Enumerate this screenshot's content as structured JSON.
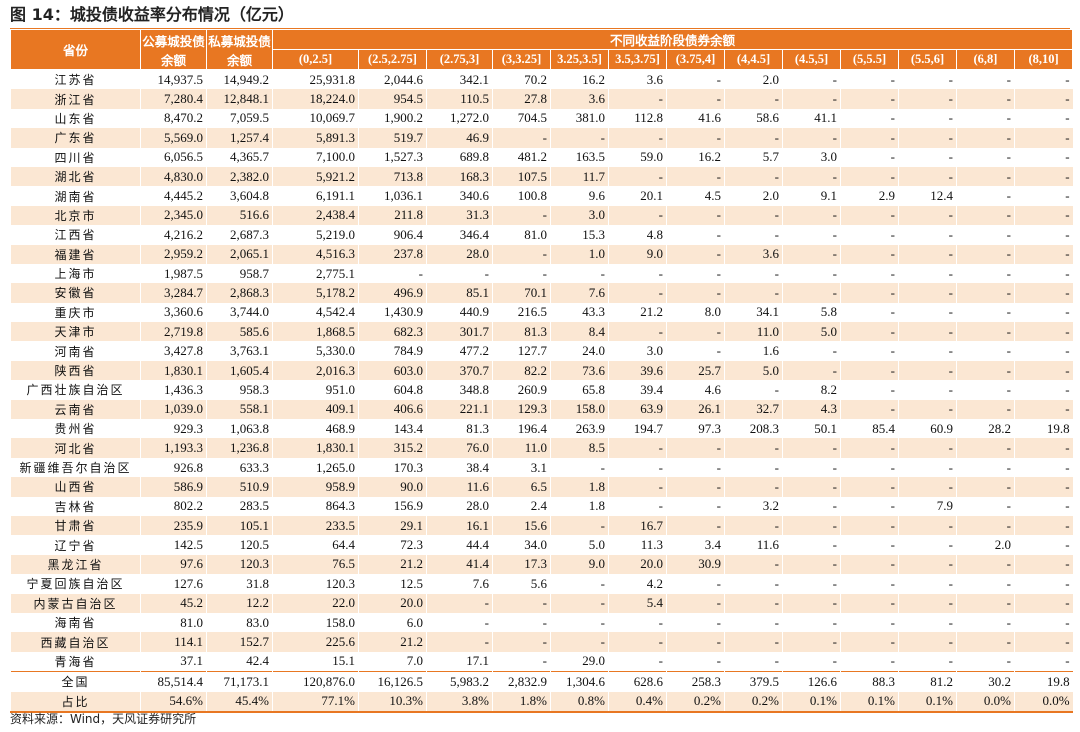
{
  "title": "图 14：城投债收益率分布情况（亿元）",
  "source": "资料来源：Wind，天风证券研究所",
  "colors": {
    "header_bg": "#e87722",
    "stripe": "#fbe7d3"
  },
  "headers": {
    "province": "省份",
    "public": "公募城投债余额",
    "private": "私募城投债余额",
    "group": "不同收益阶段债券余额",
    "ranges": [
      "(0,2.5]",
      "(2.5,2.75]",
      "(2.75,3]",
      "(3,3.25]",
      "3.25,3.5]",
      "3.5,3.75]",
      "(3.75,4]",
      "(4,4.5]",
      "(4.5,5]",
      "(5,5.5]",
      "(5.5,6]",
      "(6,8]",
      "(8,10]"
    ]
  },
  "rows": [
    [
      "江苏省",
      "14,937.5",
      "14,949.2",
      "25,931.8",
      "2,044.6",
      "342.1",
      "70.2",
      "16.2",
      "3.6",
      "-",
      "2.0",
      "-",
      "-",
      "-",
      "-",
      "-"
    ],
    [
      "浙江省",
      "7,280.4",
      "12,848.1",
      "18,224.0",
      "954.5",
      "110.5",
      "27.8",
      "3.6",
      "-",
      "-",
      "-",
      "-",
      "-",
      "-",
      "-",
      "-"
    ],
    [
      "山东省",
      "8,470.2",
      "7,059.5",
      "10,069.7",
      "1,900.2",
      "1,272.0",
      "704.5",
      "381.0",
      "112.8",
      "41.6",
      "58.6",
      "41.1",
      "-",
      "-",
      "-",
      "-"
    ],
    [
      "广东省",
      "5,569.0",
      "1,257.4",
      "5,891.3",
      "519.7",
      "46.9",
      "-",
      "-",
      "-",
      "-",
      "-",
      "-",
      "-",
      "-",
      "-",
      "-"
    ],
    [
      "四川省",
      "6,056.5",
      "4,365.7",
      "7,100.0",
      "1,527.3",
      "689.8",
      "481.2",
      "163.5",
      "59.0",
      "16.2",
      "5.7",
      "3.0",
      "-",
      "-",
      "-",
      "-"
    ],
    [
      "湖北省",
      "4,830.0",
      "2,382.0",
      "5,921.2",
      "713.8",
      "168.3",
      "107.5",
      "11.7",
      "-",
      "-",
      "-",
      "-",
      "-",
      "-",
      "-",
      "-"
    ],
    [
      "湖南省",
      "4,445.2",
      "3,604.8",
      "6,191.1",
      "1,036.1",
      "340.6",
      "100.8",
      "9.6",
      "20.1",
      "4.5",
      "2.0",
      "9.1",
      "2.9",
      "12.4",
      "-",
      "-"
    ],
    [
      "北京市",
      "2,345.0",
      "516.6",
      "2,438.4",
      "211.8",
      "31.3",
      "-",
      "3.0",
      "-",
      "-",
      "-",
      "-",
      "-",
      "-",
      "-",
      "-"
    ],
    [
      "江西省",
      "4,216.2",
      "2,687.3",
      "5,219.0",
      "906.4",
      "346.4",
      "81.0",
      "15.3",
      "4.8",
      "-",
      "-",
      "-",
      "-",
      "-",
      "-",
      "-"
    ],
    [
      "福建省",
      "2,959.2",
      "2,065.1",
      "4,516.3",
      "237.8",
      "28.0",
      "-",
      "1.0",
      "9.0",
      "-",
      "3.6",
      "-",
      "-",
      "-",
      "-",
      "-"
    ],
    [
      "上海市",
      "1,987.5",
      "958.7",
      "2,775.1",
      "-",
      "-",
      "-",
      "-",
      "-",
      "-",
      "-",
      "-",
      "-",
      "-",
      "-",
      "-"
    ],
    [
      "安徽省",
      "3,284.7",
      "2,868.3",
      "5,178.2",
      "496.9",
      "85.1",
      "70.1",
      "7.6",
      "-",
      "-",
      "-",
      "-",
      "-",
      "-",
      "-",
      "-"
    ],
    [
      "重庆市",
      "3,360.6",
      "3,744.0",
      "4,542.4",
      "1,430.9",
      "440.9",
      "216.5",
      "43.3",
      "21.2",
      "8.0",
      "34.1",
      "5.8",
      "-",
      "-",
      "-",
      "-"
    ],
    [
      "天津市",
      "2,719.8",
      "585.6",
      "1,868.5",
      "682.3",
      "301.7",
      "81.3",
      "8.4",
      "-",
      "-",
      "11.0",
      "5.0",
      "-",
      "-",
      "-",
      "-"
    ],
    [
      "河南省",
      "3,427.8",
      "3,763.1",
      "5,330.0",
      "784.9",
      "477.2",
      "127.7",
      "24.0",
      "3.0",
      "-",
      "1.6",
      "-",
      "-",
      "-",
      "-",
      "-"
    ],
    [
      "陕西省",
      "1,830.1",
      "1,605.4",
      "2,016.3",
      "603.0",
      "370.7",
      "82.2",
      "73.6",
      "39.6",
      "25.7",
      "5.0",
      "-",
      "-",
      "-",
      "-",
      "-"
    ],
    [
      "广西壮族自治区",
      "1,436.3",
      "958.3",
      "951.0",
      "604.8",
      "348.8",
      "260.9",
      "65.8",
      "39.4",
      "4.6",
      "-",
      "8.2",
      "-",
      "-",
      "-",
      "-"
    ],
    [
      "云南省",
      "1,039.0",
      "558.1",
      "409.1",
      "406.6",
      "221.1",
      "129.3",
      "158.0",
      "63.9",
      "26.1",
      "32.7",
      "4.3",
      "-",
      "-",
      "-",
      "-"
    ],
    [
      "贵州省",
      "929.3",
      "1,063.8",
      "468.9",
      "143.4",
      "81.3",
      "196.4",
      "263.9",
      "194.7",
      "97.3",
      "208.3",
      "50.1",
      "85.4",
      "60.9",
      "28.2",
      "19.8"
    ],
    [
      "河北省",
      "1,193.3",
      "1,236.8",
      "1,830.1",
      "315.2",
      "76.0",
      "11.0",
      "8.5",
      "-",
      "-",
      "-",
      "-",
      "-",
      "-",
      "-",
      "-"
    ],
    [
      "新疆维吾尔自治区",
      "926.8",
      "633.3",
      "1,265.0",
      "170.3",
      "38.4",
      "3.1",
      "-",
      "-",
      "-",
      "-",
      "-",
      "-",
      "-",
      "-",
      "-"
    ],
    [
      "山西省",
      "586.9",
      "510.9",
      "958.9",
      "90.0",
      "11.6",
      "6.5",
      "1.8",
      "-",
      "-",
      "-",
      "-",
      "-",
      "-",
      "-",
      "-"
    ],
    [
      "吉林省",
      "802.2",
      "283.5",
      "864.3",
      "156.9",
      "28.0",
      "2.4",
      "1.8",
      "-",
      "-",
      "3.2",
      "-",
      "-",
      "7.9",
      "-",
      "-"
    ],
    [
      "甘肃省",
      "235.9",
      "105.1",
      "233.5",
      "29.1",
      "16.1",
      "15.6",
      "-",
      "16.7",
      "-",
      "-",
      "-",
      "-",
      "-",
      "-",
      "-"
    ],
    [
      "辽宁省",
      "142.5",
      "120.5",
      "64.4",
      "72.3",
      "44.4",
      "34.0",
      "5.0",
      "11.3",
      "3.4",
      "11.6",
      "-",
      "-",
      "-",
      "2.0",
      "-"
    ],
    [
      "黑龙江省",
      "97.6",
      "120.3",
      "76.5",
      "21.2",
      "41.4",
      "17.3",
      "9.0",
      "20.0",
      "30.9",
      "-",
      "-",
      "-",
      "-",
      "-",
      "-"
    ],
    [
      "宁夏回族自治区",
      "127.6",
      "31.8",
      "120.3",
      "12.5",
      "7.6",
      "5.6",
      "-",
      "4.2",
      "-",
      "-",
      "-",
      "-",
      "-",
      "-",
      "-"
    ],
    [
      "内蒙古自治区",
      "45.2",
      "12.2",
      "22.0",
      "20.0",
      "-",
      "-",
      "-",
      "5.4",
      "-",
      "-",
      "-",
      "-",
      "-",
      "-",
      "-"
    ],
    [
      "海南省",
      "81.0",
      "83.0",
      "158.0",
      "6.0",
      "-",
      "-",
      "-",
      "-",
      "-",
      "-",
      "-",
      "-",
      "-",
      "-",
      "-"
    ],
    [
      "西藏自治区",
      "114.1",
      "152.7",
      "225.6",
      "21.2",
      "-",
      "-",
      "-",
      "-",
      "-",
      "-",
      "-",
      "-",
      "-",
      "-",
      "-"
    ],
    [
      "青海省",
      "37.1",
      "42.4",
      "15.1",
      "7.0",
      "17.1",
      "-",
      "29.0",
      "-",
      "-",
      "-",
      "-",
      "-",
      "-",
      "-",
      "-"
    ]
  ],
  "total": [
    "全国",
    "85,514.4",
    "71,173.1",
    "120,876.0",
    "16,126.5",
    "5,983.2",
    "2,832.9",
    "1,304.6",
    "628.6",
    "258.3",
    "379.5",
    "126.6",
    "88.3",
    "81.2",
    "30.2",
    "19.8"
  ],
  "share": [
    "占比",
    "54.6%",
    "45.4%",
    "77.1%",
    "10.3%",
    "3.8%",
    "1.8%",
    "0.8%",
    "0.4%",
    "0.2%",
    "0.2%",
    "0.1%",
    "0.1%",
    "0.1%",
    "0.0%",
    "0.0%"
  ]
}
